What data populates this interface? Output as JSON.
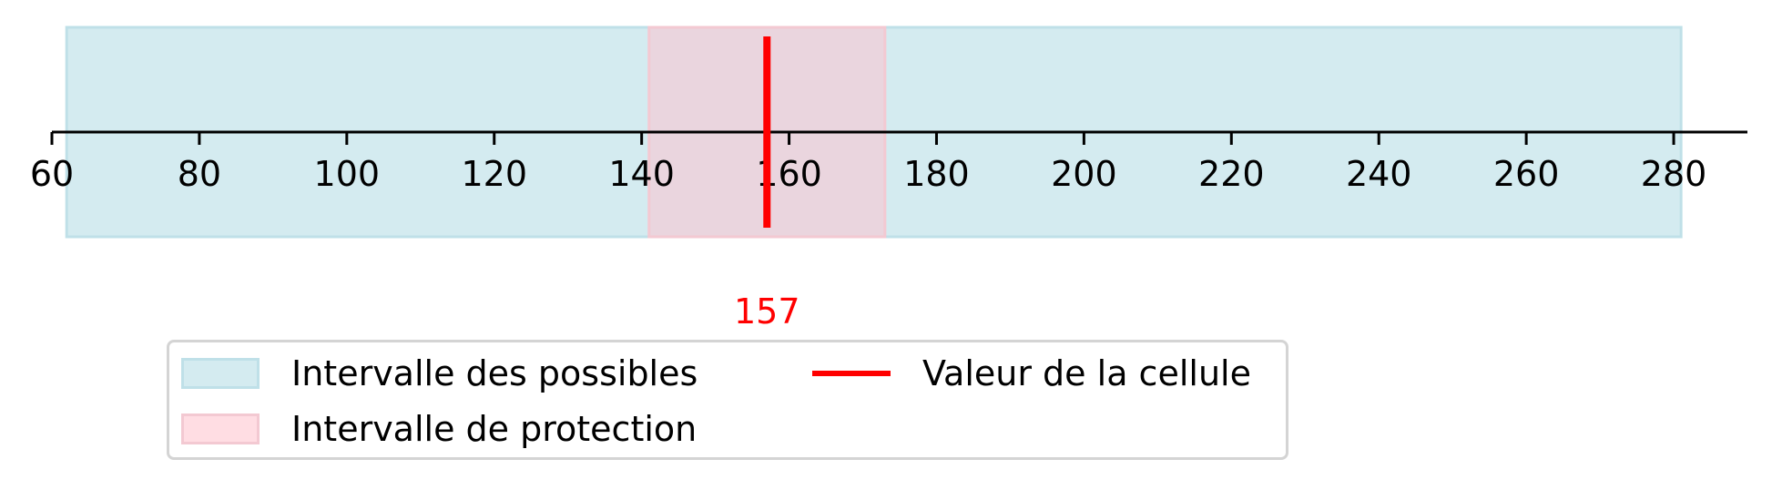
{
  "colors": {
    "possible_fill": "#d4ebf0",
    "possible_edge": "#bfe0e8",
    "protection_fill": "#ead5de",
    "protection_edge": "#f3c9d2",
    "protection_legend_fill": "#ffdde3",
    "value_line": "#ff0000",
    "axis": "#000000"
  },
  "chart_data": {
    "type": "interval",
    "title": "",
    "xlabel": "",
    "ylabel": "",
    "xlim": [
      60,
      290
    ],
    "grid": false,
    "legend_position": "bottom-center",
    "ticks": [
      60,
      80,
      100,
      120,
      140,
      160,
      180,
      200,
      220,
      240,
      260,
      280
    ],
    "tick_labels": [
      "60",
      "80",
      "100",
      "120",
      "140",
      "160",
      "180",
      "200",
      "220",
      "240",
      "260",
      "280"
    ],
    "possible_interval": [
      62,
      281
    ],
    "protection_interval": [
      141,
      173
    ],
    "cell_value": 157,
    "cell_value_label": "157"
  },
  "legend": {
    "items": [
      {
        "label": "Intervalle des possibles",
        "type": "patch",
        "color_key": "possible_fill"
      },
      {
        "label": "Intervalle de protection",
        "type": "patch",
        "color_key": "protection_legend_fill"
      },
      {
        "label": "Valeur de la cellule",
        "type": "line",
        "color_key": "value_line"
      }
    ]
  }
}
